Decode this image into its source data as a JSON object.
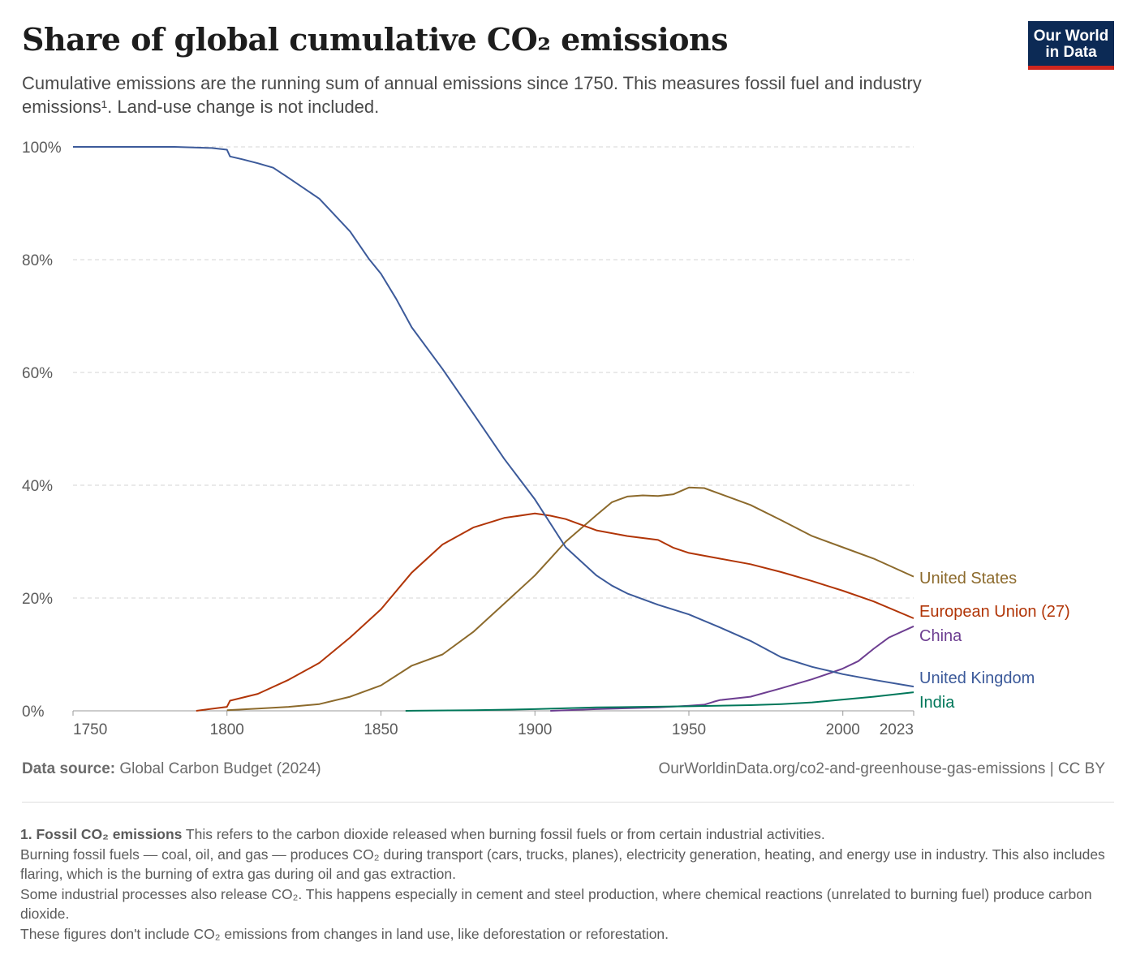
{
  "title": "Share of global cumulative CO₂ emissions",
  "subtitle": "Cumulative emissions are the running sum of annual emissions since 1750. This measures fossil fuel and industry emissions¹. Land-use change is not included.",
  "logo": {
    "line1": "Our World",
    "line2": "in Data",
    "colors": {
      "background": "#0c2a55",
      "stripe": "#ce261e"
    }
  },
  "source": {
    "label": "Data source:",
    "text": "Global Carbon Budget (2024)"
  },
  "url": "OurWorldinData.org/co2-and-greenhouse-gas-emissions | CC BY",
  "notes": {
    "heading": "1. Fossil CO₂ emissions",
    "lines": [
      "This refers to the carbon dioxide released when burning fossil fuels or from certain industrial activities.",
      "Burning fossil fuels — coal, oil, and gas — produces CO₂ during transport (cars, trucks, planes), electricity generation, heating, and energy use in industry. This also includes flaring, which is the burning of extra gas during oil and gas extraction.",
      "Some industrial processes also release CO₂. This happens especially in cement and steel production, where chemical reactions (unrelated to burning fuel) produce carbon dioxide.",
      "These figures don't include CO₂ emissions from changes in land use, like deforestation or reforestation."
    ]
  },
  "chart_data": {
    "type": "line",
    "title": "Share of global cumulative CO₂ emissions",
    "xlim": [
      1750,
      2023
    ],
    "ylim": [
      0,
      100
    ],
    "x_ticks": [
      1750,
      1800,
      1850,
      1900,
      1950,
      2000,
      2023
    ],
    "y_ticks": [
      0,
      20,
      40,
      60,
      80,
      100
    ],
    "y_tick_labels": [
      "0%",
      "20%",
      "40%",
      "60%",
      "80%",
      "100%"
    ],
    "grid": "horizontal dashed",
    "legend": "right (end-of-line labels)",
    "series": [
      {
        "name": "United States",
        "color": "#8c6a2c",
        "x": [
          1800,
          1810,
          1820,
          1830,
          1840,
          1850,
          1860,
          1870,
          1880,
          1890,
          1900,
          1905,
          1910,
          1920,
          1925,
          1930,
          1935,
          1940,
          1945,
          1950,
          1955,
          1960,
          1970,
          1980,
          1990,
          2000,
          2010,
          2023
        ],
        "y": [
          0.1,
          0.4,
          0.7,
          1.2,
          2.5,
          4.5,
          8,
          10,
          14,
          19,
          24,
          27,
          30,
          34.7,
          37,
          38,
          38.2,
          38.1,
          38.4,
          39.6,
          39.5,
          38.5,
          36.5,
          33.8,
          31,
          29,
          27,
          23.8
        ]
      },
      {
        "name": "European Union (27)",
        "color": "#b13507",
        "x": [
          1790,
          1800,
          1801,
          1810,
          1820,
          1830,
          1840,
          1850,
          1860,
          1870,
          1880,
          1890,
          1900,
          1905,
          1910,
          1920,
          1930,
          1940,
          1945,
          1950,
          1960,
          1970,
          1980,
          1990,
          2000,
          2010,
          2023
        ],
        "y": [
          0,
          0.7,
          1.8,
          3,
          5.5,
          8.5,
          13,
          18,
          24.5,
          29.5,
          32.5,
          34.2,
          35,
          34.6,
          34,
          32,
          31,
          30.3,
          28.9,
          28,
          27,
          26,
          24.6,
          23,
          21.3,
          19.4,
          16.4
        ]
      },
      {
        "name": "China",
        "color": "#6d3e91",
        "x": [
          1905,
          1920,
          1940,
          1950,
          1955,
          1958,
          1960,
          1970,
          1980,
          1990,
          1997,
          2000,
          2005,
          2010,
          2015,
          2023
        ],
        "y": [
          0,
          0.3,
          0.6,
          0.9,
          1.1,
          1.6,
          1.9,
          2.5,
          4,
          5.6,
          6.9,
          7.5,
          8.8,
          11,
          13,
          15
        ]
      },
      {
        "name": "United Kingdom",
        "color": "#3c5a9a",
        "x": [
          1750,
          1783,
          1795,
          1800,
          1801,
          1805,
          1810,
          1815,
          1820,
          1830,
          1840,
          1846,
          1850,
          1855,
          1860,
          1870,
          1880,
          1890,
          1900,
          1910,
          1920,
          1925,
          1930,
          1940,
          1950,
          1960,
          1970,
          1980,
          1990,
          1997,
          2000,
          2010,
          2023
        ],
        "y": [
          100,
          100,
          99.8,
          99.5,
          98.3,
          97.8,
          97.1,
          96.3,
          94.5,
          90.8,
          85,
          80.2,
          77.5,
          73,
          68,
          60.6,
          52.7,
          44.7,
          37.5,
          29,
          24,
          22.2,
          20.8,
          18.8,
          17.1,
          14.8,
          12.4,
          9.5,
          7.8,
          6.9,
          6.5,
          5.5,
          4.3
        ]
      },
      {
        "name": "India",
        "color": "#00775a",
        "x": [
          1858,
          1880,
          1900,
          1920,
          1950,
          1970,
          1980,
          1990,
          2000,
          2010,
          2023
        ],
        "y": [
          0,
          0.1,
          0.3,
          0.6,
          0.8,
          1,
          1.2,
          1.5,
          2,
          2.5,
          3.3
        ]
      }
    ]
  }
}
